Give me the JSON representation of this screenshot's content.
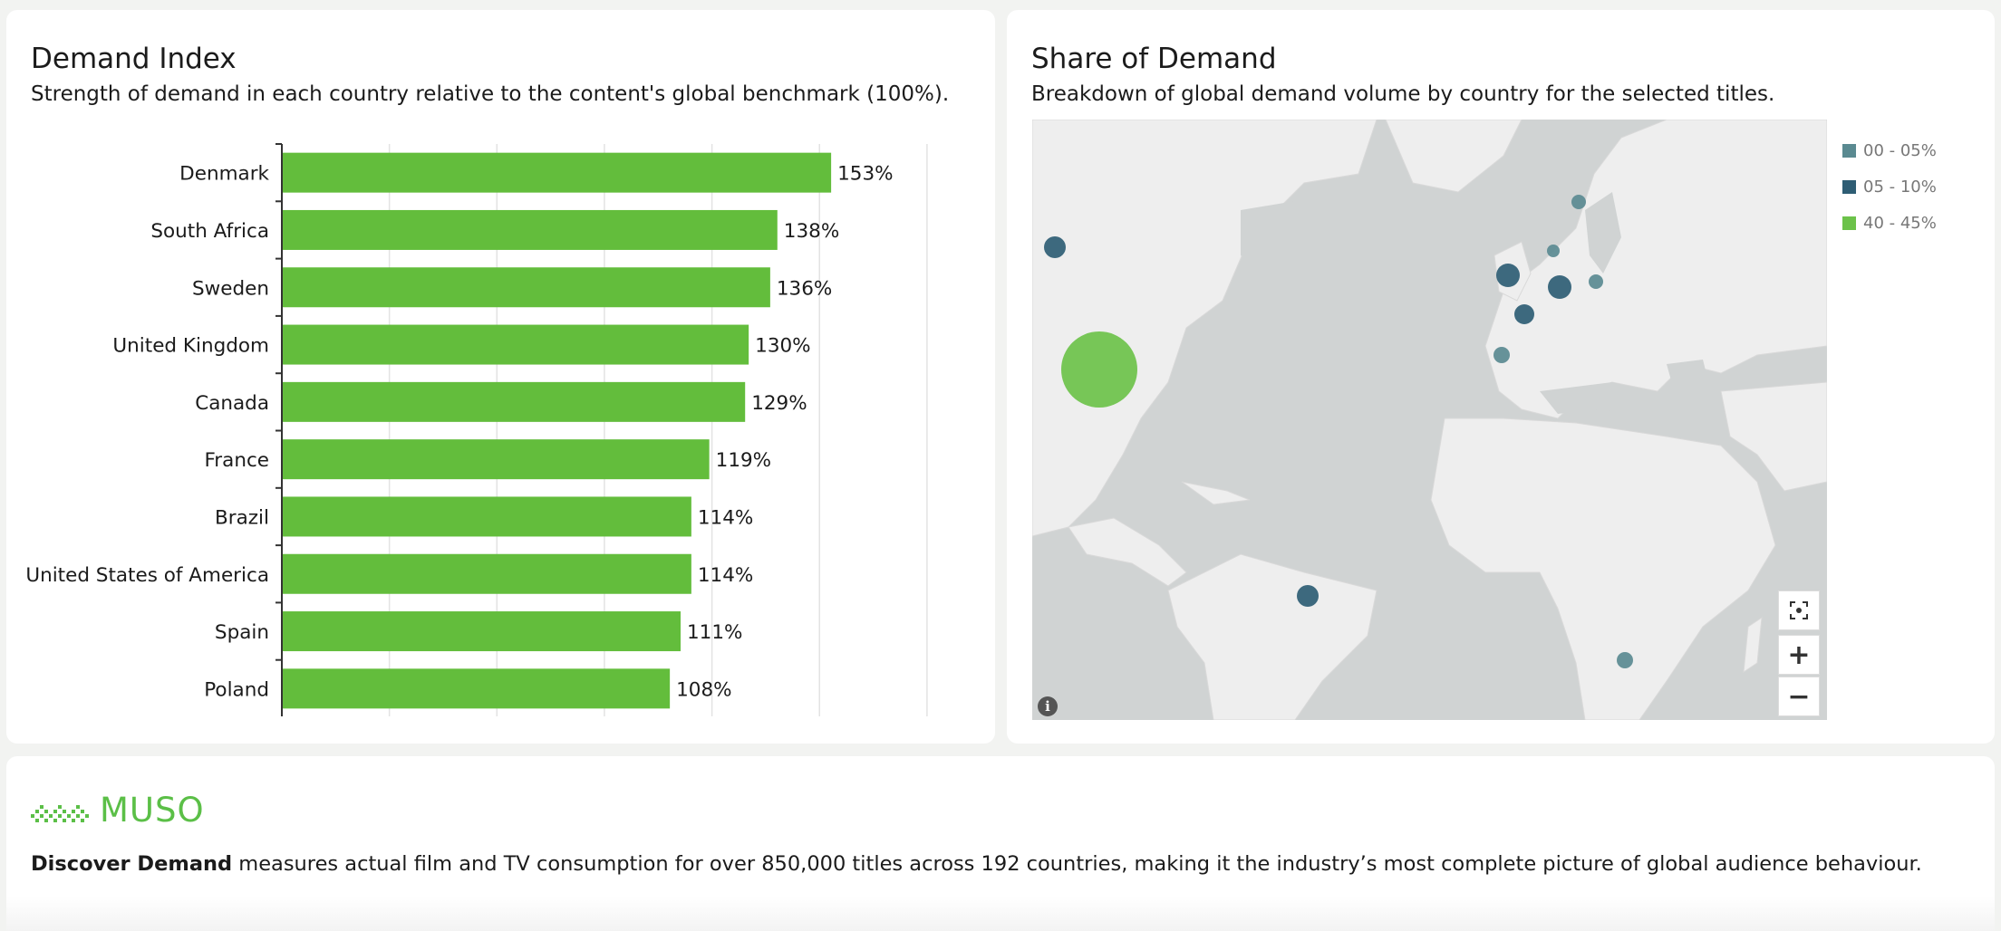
{
  "index_card": {
    "title": "Demand Index",
    "subtitle": "Strength of demand in each country relative to the content's global benchmark (100%)."
  },
  "share_card": {
    "title": "Share of Demand",
    "subtitle": "Breakdown of global demand volume by country for the selected titles.",
    "legend": [
      {
        "label": "00 - 05%",
        "color": "#5a8a91"
      },
      {
        "label": "05 - 10%",
        "color": "#2e5d74"
      },
      {
        "label": "40 - 45%",
        "color": "#6cc24a"
      }
    ],
    "controls": {
      "fit_icon": "fit-to-screen-icon",
      "zoom_in": "+",
      "zoom_out": "−",
      "info": "i"
    },
    "map_points": [
      {
        "location": "Canada",
        "band": "05 - 10%"
      },
      {
        "location": "United States of America",
        "band": "40 - 45%"
      },
      {
        "location": "United Kingdom",
        "band": "05 - 10%"
      },
      {
        "location": "Denmark",
        "band": "00 - 05%"
      },
      {
        "location": "Sweden",
        "band": "00 - 05%"
      },
      {
        "location": "Germany",
        "band": "05 - 10%"
      },
      {
        "location": "Poland",
        "band": "00 - 05%"
      },
      {
        "location": "France",
        "band": "05 - 10%"
      },
      {
        "location": "Spain",
        "band": "00 - 05%"
      },
      {
        "location": "Brazil",
        "band": "05 - 10%"
      },
      {
        "location": "South Africa",
        "band": "00 - 05%"
      }
    ]
  },
  "chart_data": {
    "type": "bar",
    "orientation": "horizontal",
    "title": "Demand Index",
    "categories": [
      "Denmark",
      "South Africa",
      "Sweden",
      "United Kingdom",
      "Canada",
      "France",
      "Brazil",
      "United States of America",
      "Spain",
      "Poland"
    ],
    "values": [
      153,
      138,
      136,
      130,
      129,
      119,
      114,
      114,
      111,
      108
    ],
    "value_labels": [
      "153%",
      "138%",
      "136%",
      "130%",
      "129%",
      "119%",
      "114%",
      "114%",
      "111%",
      "108%"
    ],
    "xlim": [
      0,
      180
    ],
    "grid": true,
    "bar_color": "#63bd3c"
  },
  "footer": {
    "brand": "MUSO",
    "brand_color": "#5bbf47",
    "text_bold": "Discover Demand",
    "text_rest": " measures actual film and TV consumption for over 850,000 titles across 192 countries, making it the industry’s most complete picture of global audience behaviour."
  }
}
